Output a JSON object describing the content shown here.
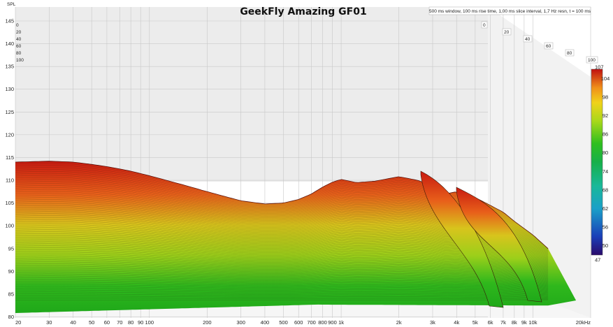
{
  "chart_data": {
    "type": "waterfall",
    "title": "GeekFly Amazing GF01",
    "settings_text": "500 ms window, 100 ms rise time, 1,00 ms slice interval, 1,7 Hz resn, t = 100 ms",
    "ylabel": "SPL",
    "ylim": [
      78,
      146
    ],
    "y_ticks": [
      "145",
      "140",
      "135",
      "130",
      "125",
      "120",
      "115",
      "110",
      "105",
      "100",
      "95",
      "90",
      "85",
      "80"
    ],
    "x_ticks": [
      "20",
      "30",
      "40",
      "50",
      "60",
      "70",
      "80",
      "90",
      "100",
      "200",
      "300",
      "400",
      "500",
      "600",
      "700",
      "800",
      "900",
      "1k",
      "2k",
      "3k",
      "4k",
      "5k",
      "6k",
      "7k",
      "8k",
      "9k",
      "10k",
      "20kHz"
    ],
    "time_ticks_ms": [
      "0",
      "20",
      "40",
      "60",
      "80",
      "100"
    ],
    "colorbar_ticks": [
      "107",
      "104",
      "98",
      "92",
      "86",
      "80",
      "74",
      "68",
      "62",
      "56",
      "50",
      "47"
    ],
    "colorbar_range": [
      47,
      107
    ],
    "colormap": [
      "#2a0a6b",
      "#1a3fb8",
      "#1aa0c8",
      "#19b89a",
      "#17b04a",
      "#2fbf1f",
      "#a8d81a",
      "#f0d21a",
      "#f0901a",
      "#e02a10",
      "#c01010"
    ],
    "front_slice": {
      "freq_hz": [
        20,
        30,
        40,
        50,
        60,
        70,
        80,
        100,
        150,
        200,
        300,
        400,
        500,
        600,
        700,
        800,
        900,
        1000,
        1200,
        1500,
        2000,
        2500,
        3000,
        3500,
        4000,
        4500,
        5000,
        6000,
        7000,
        8000,
        10000,
        12000
      ],
      "spl_db": [
        114,
        114.2,
        114,
        113.5,
        113,
        112.5,
        112,
        111,
        109,
        107.5,
        105.5,
        104.8,
        105,
        105.8,
        107,
        108.5,
        109.6,
        110.2,
        109.5,
        109.8,
        110.8,
        110,
        108.8,
        107,
        107.5,
        106.5,
        106.2,
        104.5,
        103,
        101,
        98,
        95
      ]
    }
  }
}
